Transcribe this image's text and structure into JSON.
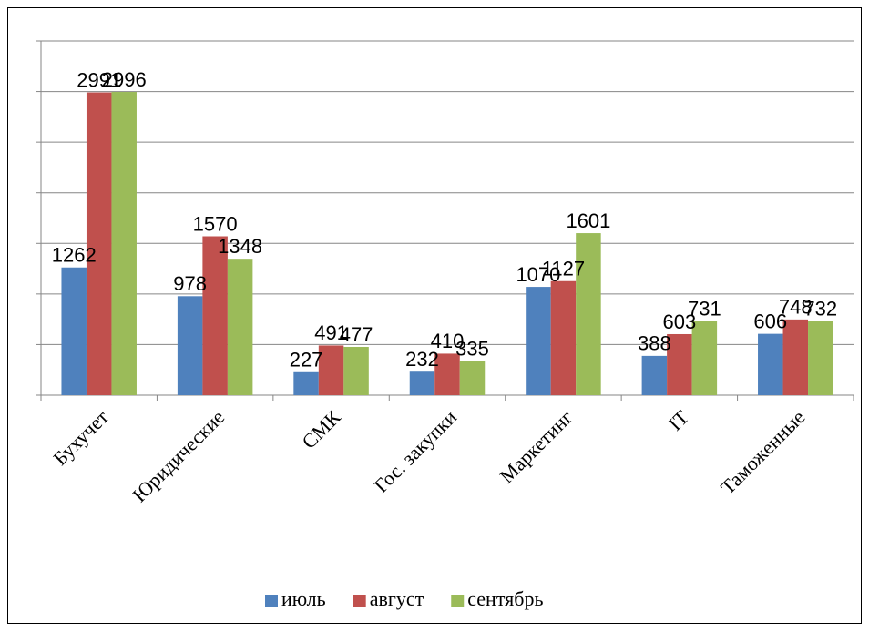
{
  "chart_data": {
    "type": "bar",
    "categories": [
      "Бухучет",
      "Юридические",
      "СМК",
      "Гос. закупки",
      "Маркетинг",
      "IT",
      "Таможенные"
    ],
    "series": [
      {
        "name": "июль",
        "color": "#4f81bd",
        "values": [
          1262,
          978,
          227,
          232,
          1070,
          388,
          606
        ]
      },
      {
        "name": "август",
        "color": "#c0504d",
        "values": [
          2991,
          1570,
          491,
          410,
          1127,
          603,
          748
        ]
      },
      {
        "name": "сентябрь",
        "color": "#9bbb59",
        "values": [
          2996,
          1348,
          477,
          335,
          1601,
          731,
          732
        ]
      }
    ],
    "ylim": [
      0,
      3500
    ],
    "yticks": [
      0,
      500,
      1000,
      1500,
      2000,
      2500,
      3000,
      3500
    ],
    "grid": true,
    "legend": "bottom"
  }
}
